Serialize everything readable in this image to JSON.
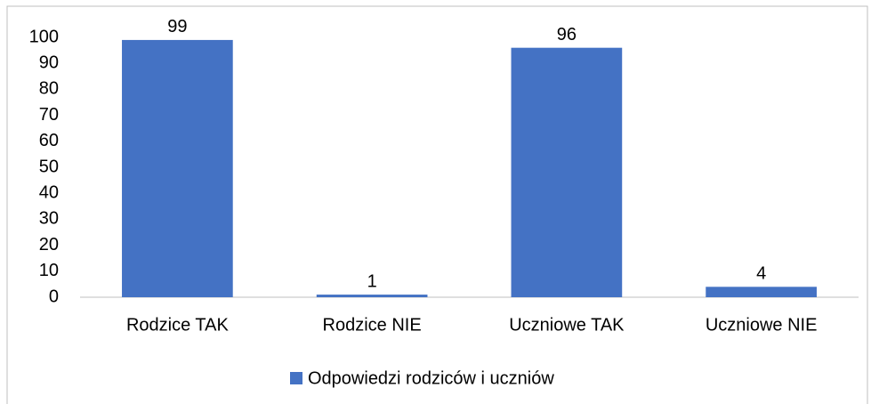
{
  "chart_data": {
    "type": "bar",
    "categories": [
      "Rodzice TAK",
      "Rodzice NIE",
      "Uczniowe TAK",
      "Uczniowe NIE"
    ],
    "series": [
      {
        "name": "Odpowiedzi rodziców i uczniów",
        "color": "#4472c4",
        "values": [
          99,
          1,
          96,
          4
        ]
      }
    ],
    "ylim": [
      0,
      100
    ],
    "yticks": [
      0,
      10,
      20,
      30,
      40,
      50,
      60,
      70,
      80,
      90,
      100
    ],
    "grid": false,
    "legend": "bottom",
    "data_labels": true
  }
}
